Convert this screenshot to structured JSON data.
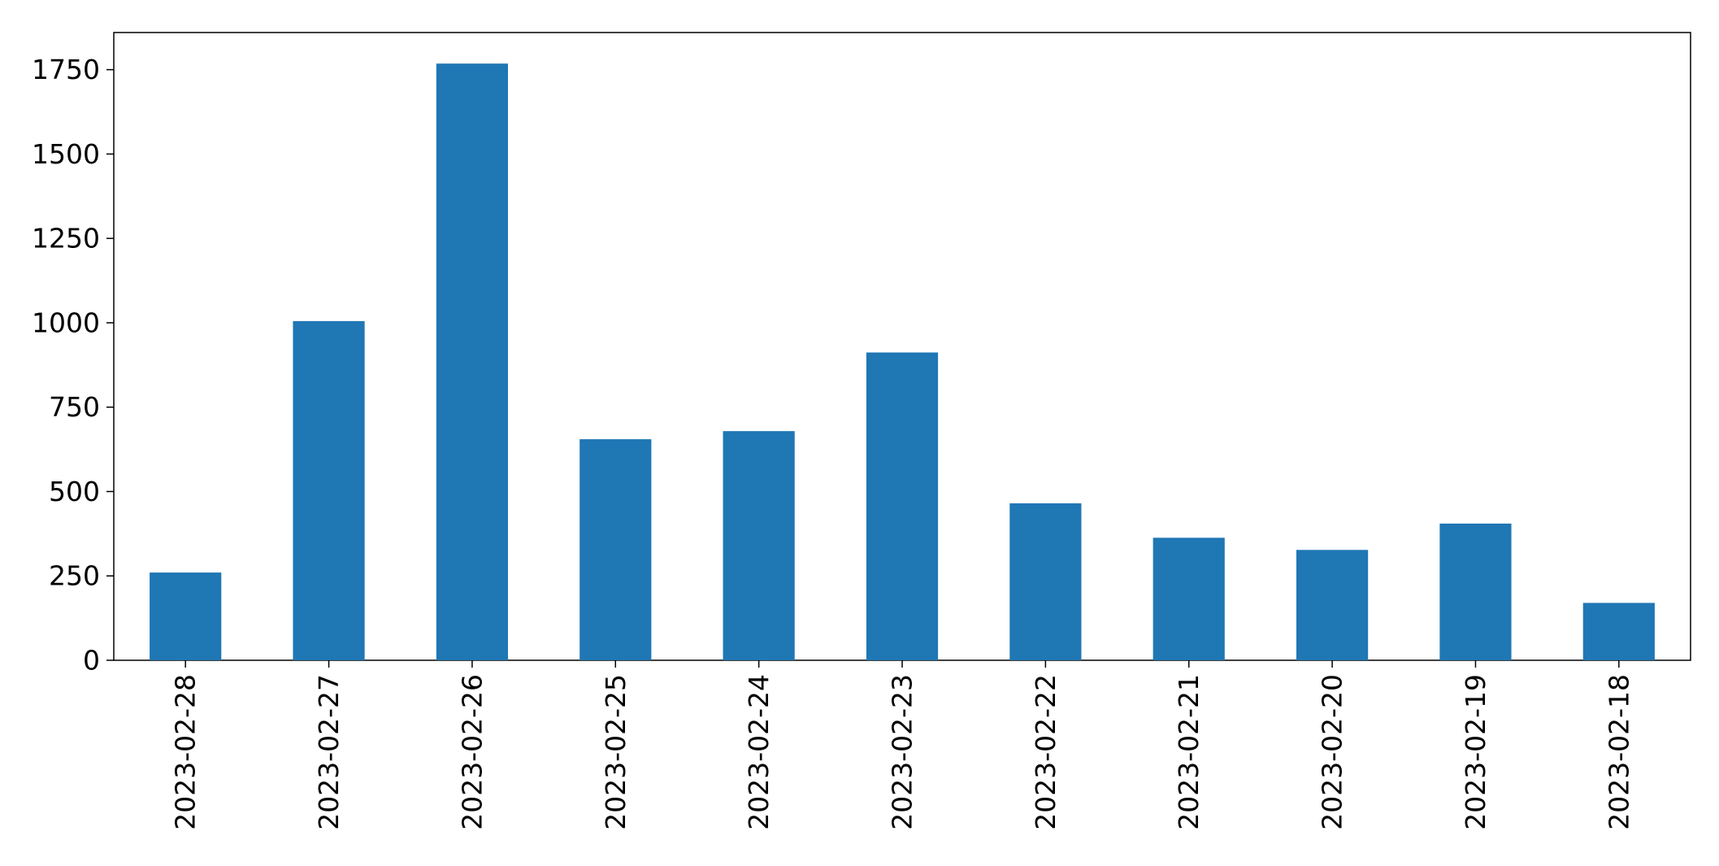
{
  "chart_data": {
    "type": "bar",
    "title": "",
    "xlabel": "",
    "ylabel": "",
    "categories": [
      "2023-02-28",
      "2023-02-27",
      "2023-02-26",
      "2023-02-25",
      "2023-02-24",
      "2023-02-23",
      "2023-02-22",
      "2023-02-21",
      "2023-02-20",
      "2023-02-19",
      "2023-02-18"
    ],
    "values": [
      260,
      1005,
      1768,
      655,
      679,
      912,
      465,
      363,
      327,
      405,
      170
    ],
    "ylim": [
      0,
      1860
    ],
    "yticks": [
      0,
      250,
      500,
      750,
      1000,
      1250,
      1500,
      1750
    ],
    "grid": false,
    "legend": "none",
    "bar_color": "#1f77b4"
  }
}
